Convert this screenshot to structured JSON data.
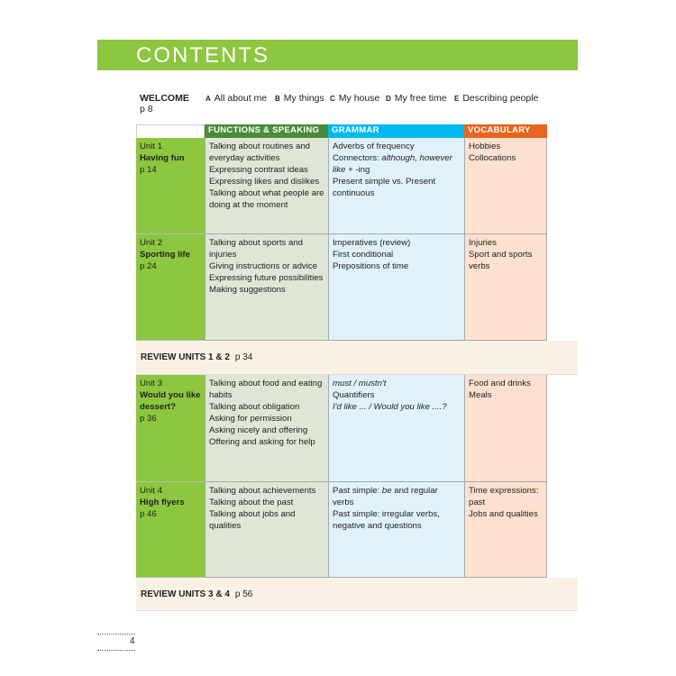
{
  "title": "CONTENTS",
  "welcome": {
    "label": "WELCOME",
    "page": "p 8",
    "items": [
      {
        "letter": "A",
        "text": "All about me"
      },
      {
        "letter": "B",
        "text": "My things"
      },
      {
        "letter": "C",
        "text": "My house"
      },
      {
        "letter": "D",
        "text": "My free time"
      },
      {
        "letter": "E",
        "text": "Describing people"
      }
    ]
  },
  "headers": {
    "functions": "FUNCTIONS & SPEAKING",
    "grammar": "GRAMMAR",
    "vocabulary": "VOCABULARY"
  },
  "colors": {
    "green": "#8dc63f",
    "functions": "#4a8c3c",
    "grammar": "#00b9f0",
    "vocabulary": "#e8651f"
  },
  "units": [
    {
      "unit": "Unit 1",
      "name": "Having fun",
      "page": "p 14",
      "functions": [
        "Talking about routines and",
        "everyday activities",
        "Expressing contrast ideas",
        "Expressing likes and dislikes",
        "Talking about what people are",
        "doing at the moment"
      ],
      "grammar": [
        "Adverbs of frequency",
        [
          [
            "Connectors: ",
            false
          ],
          [
            "although, however",
            true
          ]
        ],
        [
          [
            "like",
            true
          ],
          [
            " + -ing",
            false
          ]
        ],
        "Present simple vs. Present",
        "continuous"
      ],
      "vocabulary": [
        "Hobbies",
        "Collocations"
      ]
    },
    {
      "unit": "Unit 2",
      "name": "Sporting life",
      "page": "p 24",
      "functions": [
        "Talking about sports and",
        "injuries",
        "Giving instructions or advice",
        "Expressing future possibilities",
        "Making suggestions"
      ],
      "grammar": [
        "Imperatives (review)",
        "First conditional",
        "Prepositions of time"
      ],
      "vocabulary": [
        "Injuries",
        "Sport and sports",
        "verbs"
      ]
    },
    {
      "unit": "Unit 3",
      "name": "Would you like dessert?",
      "page": "p 36",
      "functions": [
        "Talking about food and eating",
        "habits",
        "Talking about obligation",
        "Asking for permission",
        "Asking nicely and offering",
        "Offering and asking for help"
      ],
      "grammar": [
        [
          [
            "must / mustn't",
            true
          ]
        ],
        "Quantifiers",
        [
          [
            "I'd like ... / Would you like ....?",
            true
          ]
        ]
      ],
      "vocabulary": [
        "Food and drinks",
        "Meals"
      ]
    },
    {
      "unit": "Unit 4",
      "name": "High flyers",
      "page": "p 46",
      "functions": [
        "Talking about achievements",
        "Talking about the past",
        "Talking about jobs and qualities"
      ],
      "grammar": [
        [
          [
            "Past simple: ",
            false
          ],
          [
            "be",
            true
          ],
          [
            " and regular verbs",
            false
          ]
        ],
        "Past simple: irregular verbs,",
        "negative and questions"
      ],
      "vocabulary": [
        "Time expressions:",
        "past",
        "Jobs and qualities"
      ]
    }
  ],
  "reviews": [
    {
      "label": "REVIEW UNITS 1 & 2",
      "page": "p 34"
    },
    {
      "label": "REVIEW UNITS 3 & 4",
      "page": "p 56"
    }
  ],
  "page_number": "4"
}
